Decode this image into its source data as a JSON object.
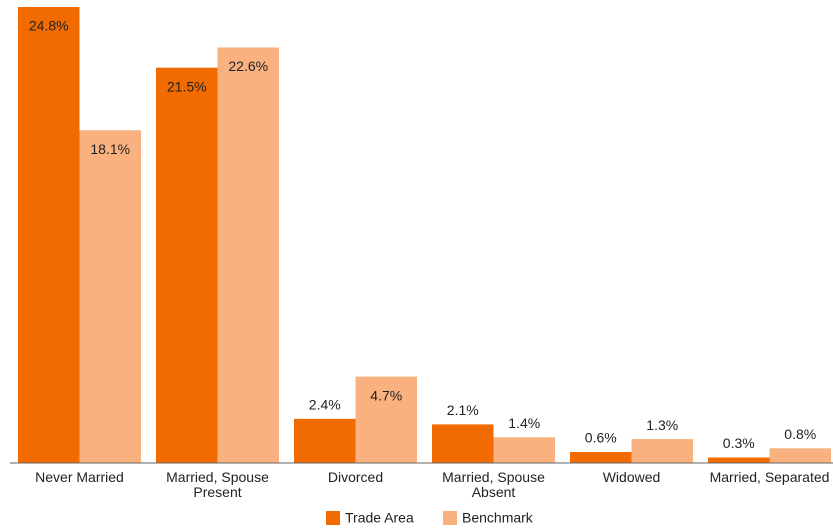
{
  "chart_data": {
    "type": "bar",
    "categories": [
      "Never Married",
      "Married, Spouse Present",
      "Divorced",
      "Married, Spouse Absent",
      "Widowed",
      "Married, Separated"
    ],
    "series": [
      {
        "name": "Trade Area",
        "color": "#f26b00",
        "values": [
          24.8,
          21.5,
          2.4,
          2.1,
          0.6,
          0.3
        ],
        "value_labels": [
          "24.8%",
          "21.5%",
          "2.4%",
          "2.1%",
          "0.6%",
          "0.3%"
        ]
      },
      {
        "name": "Benchmark",
        "color": "#f9b27f",
        "values": [
          18.1,
          22.6,
          4.7,
          1.4,
          1.3,
          0.8
        ],
        "value_labels": [
          "18.1%",
          "22.6%",
          "4.7%",
          "1.4%",
          "1.3%",
          "0.8%"
        ]
      }
    ]
  }
}
